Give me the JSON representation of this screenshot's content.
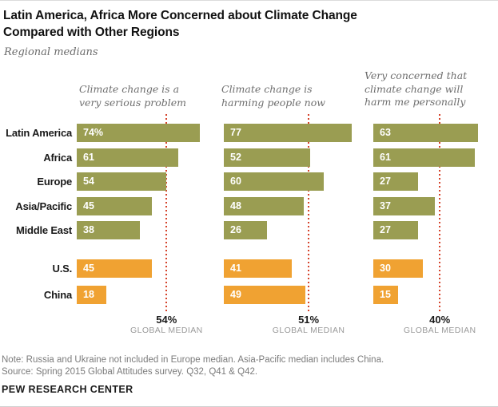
{
  "header": {
    "title": "Latin America, Africa More Concerned about Climate Change\nCompared with Other Regions",
    "subtitle": "Regional medians"
  },
  "chart_data": {
    "type": "bar",
    "orientation": "horizontal",
    "categories": [
      "Latin America",
      "Africa",
      "Europe",
      "Asia/Pacific",
      "Middle East",
      "U.S.",
      "China"
    ],
    "category_groups": [
      "region",
      "region",
      "region",
      "region",
      "region",
      "country",
      "country"
    ],
    "colors": {
      "region_bar": "#9a9d52",
      "country_bar": "#f0a232",
      "median_line": "#d5432b"
    },
    "xlim": [
      0,
      100
    ],
    "global_median_caption": "GLOBAL MEDIAN",
    "panels": [
      {
        "title": "Climate change is a\nvery serious problem",
        "values": [
          74,
          61,
          54,
          45,
          38,
          45,
          18
        ],
        "value_labels": [
          "74%",
          "61",
          "54",
          "45",
          "38",
          "45",
          "18"
        ],
        "global_median": 54,
        "global_median_label": "54%"
      },
      {
        "title": "Climate change is\nharming people now",
        "values": [
          77,
          52,
          60,
          48,
          26,
          41,
          49
        ],
        "value_labels": [
          "77",
          "52",
          "60",
          "48",
          "26",
          "41",
          "49"
        ],
        "global_median": 51,
        "global_median_label": "51%"
      },
      {
        "title": "Very concerned that\nclimate change will\nharm me personally",
        "values": [
          63,
          61,
          27,
          37,
          27,
          30,
          15
        ],
        "value_labels": [
          "63",
          "61",
          "27",
          "37",
          "27",
          "30",
          "15"
        ],
        "global_median": 40,
        "global_median_label": "40%"
      }
    ]
  },
  "footer": {
    "note": "Note: Russia and Ukraine not included in Europe median. Asia-Pacific median includes China.",
    "source": "Source: Spring 2015 Global Attitudes survey. Q32, Q41 & Q42.",
    "brand": "PEW RESEARCH CENTER"
  }
}
